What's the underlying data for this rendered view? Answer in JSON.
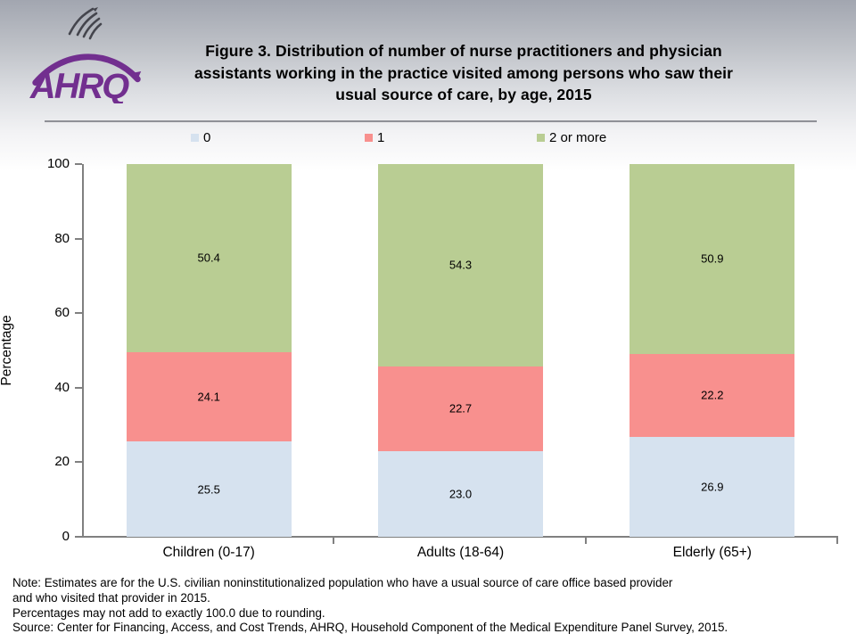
{
  "header": {
    "org_abbrev": "AHRQ",
    "title_lines": [
      "Figure 3. Distribution of number of nurse practitioners and physician",
      "assistants working in the practice visited among persons who saw their",
      "usual source of care, by age, 2015"
    ]
  },
  "chart_data": {
    "type": "bar",
    "stacked": true,
    "title": "Distribution of number of nurse practitioners and physician assistants working in the practice visited among persons who saw their usual source of care, by age, 2015",
    "categories": [
      "Children (0-17)",
      "Adults (18-64)",
      "Elderly (65+)"
    ],
    "series": [
      {
        "name": "0",
        "color": "#d6e2ef",
        "values": [
          25.5,
          23.0,
          26.9
        ]
      },
      {
        "name": "1",
        "color": "#f8908e",
        "values": [
          24.1,
          22.7,
          22.2
        ]
      },
      {
        "name": "2 or more",
        "color": "#b9cd93",
        "values": [
          50.4,
          54.3,
          50.9
        ]
      }
    ],
    "xlabel": "",
    "ylabel": "Percentage",
    "ylim": [
      0,
      100
    ],
    "yticks": [
      0,
      20,
      40,
      60,
      80,
      100
    ],
    "grid": false,
    "legend_position": "top"
  },
  "notes": [
    "Note: Estimates are for the U.S. civilian noninstitutionalized population who have a usual source of care office based provider",
    "and who visited that provider in 2015.",
    "Percentages may not add to exactly 100.0 due to rounding.",
    "Source: Center for Financing, Access, and Cost Trends, AHRQ, Household Component of the Medical Expenditure Panel Survey, 2015."
  ],
  "colors": {
    "brand_purple": "#722f8f",
    "eagle_gray": "#44454d",
    "axis_gray": "#808080",
    "series_0": "#d6e2ef",
    "series_1": "#f8908e",
    "series_2_or_more": "#b9cd93"
  }
}
